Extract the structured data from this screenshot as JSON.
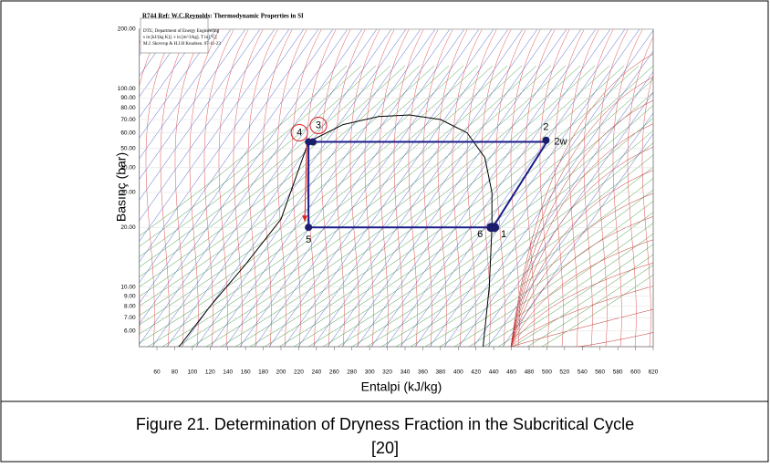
{
  "chart_data": {
    "type": "line",
    "header": [
      "R744 Ref: W.C.Reynolds: Thermodynamic Properties in SI",
      "DTU, Department of Energy Engineering",
      "s in [kJ/(kg K)]. v in [m^3/kg]. T in [ºC]",
      "M.J. Skovrup & H.J.H Knudsen. 07-11-23"
    ],
    "x_label": "Entalpi (kJ/kg)",
    "y_label": "Basınç (bar)",
    "xlim": [
      40,
      620
    ],
    "ylim": [
      5,
      200
    ],
    "y_log": true,
    "xticks": [
      60,
      80,
      100,
      120,
      140,
      160,
      180,
      200,
      220,
      240,
      260,
      280,
      300,
      320,
      340,
      360,
      380,
      400,
      420,
      440,
      460,
      480,
      500,
      520,
      540,
      560,
      580,
      600,
      620
    ],
    "yticks": [
      {
        "value": 6,
        "label": "6.00"
      },
      {
        "value": 7,
        "label": "7.00"
      },
      {
        "value": 8,
        "label": "8.00"
      },
      {
        "value": 9,
        "label": "9.00"
      },
      {
        "value": 10,
        "label": "10.00"
      },
      {
        "value": 20,
        "label": "20.00"
      },
      {
        "value": 30,
        "label": "30.00"
      },
      {
        "value": 40,
        "label": "40.00"
      },
      {
        "value": 50,
        "label": "50.00"
      },
      {
        "value": 60,
        "label": "60.00"
      },
      {
        "value": 70,
        "label": "70.00"
      },
      {
        "value": 80,
        "label": "80.00"
      },
      {
        "value": 90,
        "label": "90.00"
      },
      {
        "value": 100,
        "label": "100.00"
      },
      {
        "value": 200,
        "label": "200.00"
      }
    ],
    "series": [
      {
        "color": "#000000",
        "x": [
          85,
          120,
          160,
          200,
          231,
          270,
          310,
          345,
          380,
          410,
          430,
          438,
          438,
          435,
          428
        ],
        "values": [
          5,
          8,
          13,
          22,
          54,
          66,
          72.5,
          73.8,
          70,
          60,
          45,
          30,
          20,
          10,
          5
        ]
      },
      {
        "color": "#1c1c8c",
        "x": [
          235,
          500,
          439,
          231,
          231
        ],
        "values": [
          54,
          54,
          20,
          20,
          54
        ]
      }
    ],
    "points": [
      {
        "label": "1",
        "x": 441,
        "y": 20
      },
      {
        "label": "2",
        "x": 499,
        "y": 55
      },
      {
        "label": "2w",
        "x": 499,
        "y": 55
      },
      {
        "label": "3",
        "x": 236,
        "y": 54
      },
      {
        "label": "4",
        "x": 231,
        "y": 54
      },
      {
        "label": "5",
        "x": 231,
        "y": 20
      },
      {
        "label": "6",
        "x": 437,
        "y": 20
      }
    ],
    "caption": [
      "Figure 21. Determination of Dryness Fraction in the Subcritical Cycle",
      "[20]"
    ]
  }
}
